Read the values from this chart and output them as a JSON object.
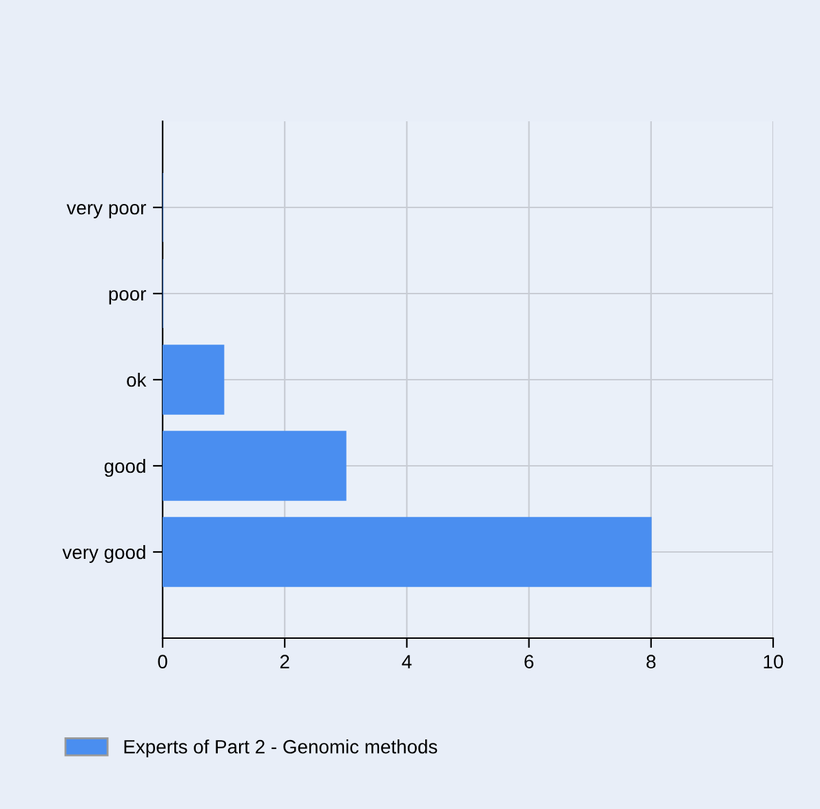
{
  "chart_data": {
    "type": "bar",
    "orientation": "horizontal",
    "categories": [
      "very poor",
      "poor",
      "ok",
      "good",
      "very good"
    ],
    "series": [
      {
        "name": "Experts of Part 2 - Genomic methods",
        "color": "#4a8ef0",
        "values": [
          0,
          0,
          1,
          3,
          8
        ]
      }
    ],
    "xlim": [
      0,
      10
    ],
    "xticks": [
      0,
      2,
      4,
      6,
      8,
      10
    ],
    "grid": true,
    "legend": "bottom left"
  }
}
